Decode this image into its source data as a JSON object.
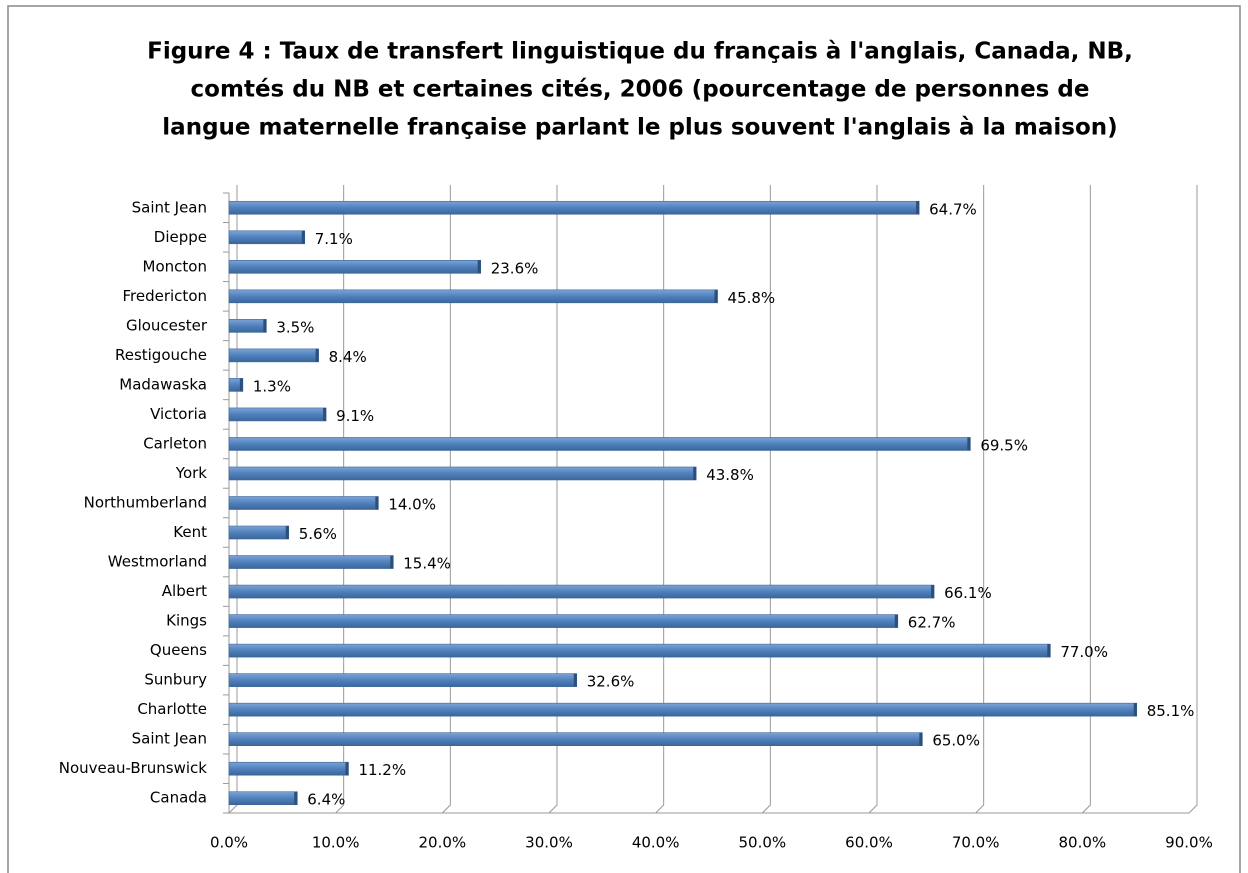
{
  "chart_data": {
    "type": "barh",
    "title": [
      "Figure 4 : Taux de transfert linguistique du français à l'anglais, Canada, NB,",
      "comtés du NB et certaines cités, 2006 (pourcentage de personnes de",
      "langue maternelle française parlant le plus souvent l'anglais à la maison)"
    ],
    "categories": [
      "Saint Jean",
      "Dieppe",
      "Moncton",
      "Fredericton",
      "Gloucester",
      "Restigouche",
      "Madawaska",
      "Victoria",
      "Carleton",
      "York",
      "Northumberland",
      "Kent",
      "Westmorland",
      "Albert",
      "Kings",
      "Queens",
      "Sunbury",
      "Charlotte",
      "Saint Jean",
      "Nouveau-Brunswick",
      "Canada"
    ],
    "values": [
      64.7,
      7.1,
      23.6,
      45.8,
      3.5,
      8.4,
      1.3,
      9.1,
      69.5,
      43.8,
      14.0,
      5.6,
      15.4,
      66.1,
      62.7,
      77.0,
      32.6,
      85.1,
      65.0,
      11.2,
      6.4
    ],
    "value_labels": [
      "64.7%",
      "7.1%",
      "23.6%",
      "45.8%",
      "3.5%",
      "8.4%",
      "1.3%",
      "9.1%",
      "69.5%",
      "43.8%",
      "14.0%",
      "5.6%",
      "15.4%",
      "66.1%",
      "62.7%",
      "77.0%",
      "32.6%",
      "85.1%",
      "65.0%",
      "11.2%",
      "6.4%"
    ],
    "color": "#4f81bd",
    "xlim": [
      0,
      90
    ],
    "xticks": [
      {
        "value": 0,
        "label": "0.0%"
      },
      {
        "value": 10,
        "label": "10.0%"
      },
      {
        "value": 20,
        "label": "20.0%"
      },
      {
        "value": 30,
        "label": "30.0%"
      },
      {
        "value": 40,
        "label": "40.0%"
      },
      {
        "value": 50,
        "label": "50.0%"
      },
      {
        "value": 60,
        "label": "60.0%"
      },
      {
        "value": 70,
        "label": "70.0%"
      },
      {
        "value": 80,
        "label": "80.0%"
      },
      {
        "value": 90,
        "label": "90.0%"
      }
    ],
    "grid": true
  }
}
